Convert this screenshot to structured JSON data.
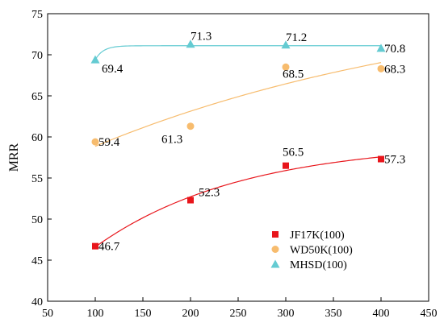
{
  "chart_data": {
    "type": "scatter",
    "title": "",
    "xlabel": "",
    "ylabel": "MRR",
    "xlim": [
      50,
      450
    ],
    "ylim": [
      40,
      75
    ],
    "xticks": [
      50,
      100,
      150,
      200,
      250,
      300,
      350,
      400,
      450
    ],
    "yticks": [
      40,
      45,
      50,
      55,
      60,
      65,
      70,
      75
    ],
    "grid": false,
    "legend_position": "bottom-right",
    "x": [
      100,
      200,
      300,
      400
    ],
    "series": [
      {
        "name": "JF17K(100)",
        "marker": "square",
        "color": "#e8151b",
        "values": [
          46.7,
          52.3,
          56.5,
          57.3
        ],
        "labels": [
          "46.7",
          "52.3",
          "56.5",
          "57.3"
        ]
      },
      {
        "name": "WD50K(100)",
        "marker": "circle",
        "color": "#f7bc6e",
        "values": [
          59.4,
          61.3,
          68.5,
          68.3
        ],
        "labels": [
          "59.4",
          "61.3",
          "68.5",
          "68.3"
        ]
      },
      {
        "name": "MHSD(100)",
        "marker": "triangle",
        "color": "#64cbd2",
        "values": [
          69.4,
          71.3,
          71.2,
          70.8
        ],
        "labels": [
          "69.4",
          "71.3",
          "71.2",
          "70.8"
        ]
      }
    ]
  }
}
